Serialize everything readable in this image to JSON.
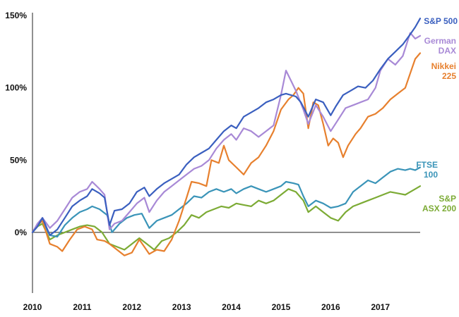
{
  "chart_data": {
    "type": "line",
    "title": "",
    "xlabel": "",
    "ylabel": "",
    "xlim": [
      2010,
      2017.8
    ],
    "ylim": [
      -42,
      152
    ],
    "x_ticks": [
      2010,
      2011,
      2012,
      2013,
      2014,
      2015,
      2016,
      2017
    ],
    "x_tick_labels": [
      "2010",
      "2011",
      "2012",
      "2013",
      "2014",
      "2015",
      "2016",
      "2017"
    ],
    "y_ticks": [
      0,
      50,
      100,
      150
    ],
    "y_tick_labels": [
      "0%",
      "50%",
      "100%",
      "150%"
    ],
    "grid": false,
    "legend": "inline labels at right end of each line",
    "series": [
      {
        "name": "S&P 500",
        "label_lines": [
          "S&P 500"
        ],
        "color": "#3a5fbf",
        "points": [
          [
            2010.0,
            0
          ],
          [
            2010.1,
            4
          ],
          [
            2010.2,
            10
          ],
          [
            2010.35,
            -2
          ],
          [
            2010.5,
            2
          ],
          [
            2010.65,
            10
          ],
          [
            2010.8,
            18
          ],
          [
            2010.95,
            22
          ],
          [
            2011.1,
            25
          ],
          [
            2011.2,
            30
          ],
          [
            2011.35,
            27
          ],
          [
            2011.45,
            24
          ],
          [
            2011.55,
            5
          ],
          [
            2011.65,
            15
          ],
          [
            2011.8,
            16
          ],
          [
            2011.95,
            20
          ],
          [
            2012.1,
            28
          ],
          [
            2012.25,
            31
          ],
          [
            2012.35,
            25
          ],
          [
            2012.5,
            30
          ],
          [
            2012.65,
            34
          ],
          [
            2012.8,
            37
          ],
          [
            2012.95,
            40
          ],
          [
            2013.1,
            47
          ],
          [
            2013.25,
            52
          ],
          [
            2013.4,
            55
          ],
          [
            2013.55,
            58
          ],
          [
            2013.7,
            64
          ],
          [
            2013.85,
            70
          ],
          [
            2014.0,
            74
          ],
          [
            2014.1,
            72
          ],
          [
            2014.25,
            80
          ],
          [
            2014.4,
            83
          ],
          [
            2014.55,
            86
          ],
          [
            2014.7,
            90
          ],
          [
            2014.85,
            92
          ],
          [
            2015.0,
            95
          ],
          [
            2015.1,
            96
          ],
          [
            2015.3,
            94
          ],
          [
            2015.4,
            90
          ],
          [
            2015.55,
            80
          ],
          [
            2015.7,
            92
          ],
          [
            2015.85,
            90
          ],
          [
            2016.0,
            81
          ],
          [
            2016.1,
            87
          ],
          [
            2016.25,
            95
          ],
          [
            2016.4,
            98
          ],
          [
            2016.55,
            101
          ],
          [
            2016.7,
            100
          ],
          [
            2016.85,
            105
          ],
          [
            2017.0,
            113
          ],
          [
            2017.15,
            120
          ],
          [
            2017.3,
            125
          ],
          [
            2017.45,
            130
          ],
          [
            2017.6,
            137
          ],
          [
            2017.7,
            142
          ],
          [
            2017.8,
            148
          ]
        ]
      },
      {
        "name": "German DAX",
        "label_lines": [
          "German",
          "DAX"
        ],
        "color": "#a889d6",
        "points": [
          [
            2010.0,
            0
          ],
          [
            2010.1,
            6
          ],
          [
            2010.2,
            10
          ],
          [
            2010.35,
            3
          ],
          [
            2010.5,
            8
          ],
          [
            2010.65,
            16
          ],
          [
            2010.8,
            24
          ],
          [
            2010.95,
            28
          ],
          [
            2011.1,
            30
          ],
          [
            2011.2,
            35
          ],
          [
            2011.35,
            30
          ],
          [
            2011.45,
            26
          ],
          [
            2011.55,
            2
          ],
          [
            2011.65,
            6
          ],
          [
            2011.8,
            8
          ],
          [
            2011.95,
            14
          ],
          [
            2012.1,
            20
          ],
          [
            2012.25,
            24
          ],
          [
            2012.35,
            14
          ],
          [
            2012.5,
            22
          ],
          [
            2012.65,
            28
          ],
          [
            2012.8,
            32
          ],
          [
            2012.95,
            36
          ],
          [
            2013.1,
            40
          ],
          [
            2013.25,
            44
          ],
          [
            2013.4,
            46
          ],
          [
            2013.55,
            50
          ],
          [
            2013.7,
            58
          ],
          [
            2013.85,
            64
          ],
          [
            2014.0,
            68
          ],
          [
            2014.1,
            64
          ],
          [
            2014.25,
            72
          ],
          [
            2014.4,
            70
          ],
          [
            2014.55,
            66
          ],
          [
            2014.7,
            70
          ],
          [
            2014.85,
            74
          ],
          [
            2015.0,
            95
          ],
          [
            2015.1,
            112
          ],
          [
            2015.2,
            105
          ],
          [
            2015.3,
            98
          ],
          [
            2015.45,
            85
          ],
          [
            2015.55,
            75
          ],
          [
            2015.7,
            88
          ],
          [
            2015.85,
            80
          ],
          [
            2016.0,
            70
          ],
          [
            2016.15,
            78
          ],
          [
            2016.3,
            86
          ],
          [
            2016.45,
            88
          ],
          [
            2016.6,
            90
          ],
          [
            2016.75,
            92
          ],
          [
            2016.9,
            100
          ],
          [
            2017.0,
            112
          ],
          [
            2017.15,
            120
          ],
          [
            2017.3,
            116
          ],
          [
            2017.45,
            122
          ],
          [
            2017.6,
            138
          ],
          [
            2017.7,
            134
          ],
          [
            2017.8,
            136
          ]
        ]
      },
      {
        "name": "Nikkei 225",
        "label_lines": [
          "Nikkei",
          "225"
        ],
        "color": "#e7802e",
        "points": [
          [
            2010.0,
            0
          ],
          [
            2010.1,
            5
          ],
          [
            2010.2,
            8
          ],
          [
            2010.35,
            -8
          ],
          [
            2010.5,
            -10
          ],
          [
            2010.6,
            -13
          ],
          [
            2010.75,
            -5
          ],
          [
            2010.9,
            2
          ],
          [
            2011.05,
            4
          ],
          [
            2011.2,
            2
          ],
          [
            2011.3,
            -5
          ],
          [
            2011.45,
            -6
          ],
          [
            2011.55,
            -8
          ],
          [
            2011.7,
            -12
          ],
          [
            2011.85,
            -16
          ],
          [
            2012.0,
            -14
          ],
          [
            2012.15,
            -5
          ],
          [
            2012.25,
            -10
          ],
          [
            2012.35,
            -15
          ],
          [
            2012.5,
            -12
          ],
          [
            2012.65,
            -13
          ],
          [
            2012.8,
            -5
          ],
          [
            2012.95,
            8
          ],
          [
            2013.1,
            24
          ],
          [
            2013.2,
            35
          ],
          [
            2013.35,
            34
          ],
          [
            2013.5,
            32
          ],
          [
            2013.6,
            50
          ],
          [
            2013.75,
            48
          ],
          [
            2013.85,
            60
          ],
          [
            2013.95,
            50
          ],
          [
            2014.1,
            45
          ],
          [
            2014.25,
            40
          ],
          [
            2014.4,
            48
          ],
          [
            2014.55,
            52
          ],
          [
            2014.7,
            60
          ],
          [
            2014.85,
            70
          ],
          [
            2015.0,
            85
          ],
          [
            2015.15,
            92
          ],
          [
            2015.25,
            95
          ],
          [
            2015.35,
            100
          ],
          [
            2015.45,
            96
          ],
          [
            2015.55,
            72
          ],
          [
            2015.65,
            90
          ],
          [
            2015.75,
            88
          ],
          [
            2015.85,
            75
          ],
          [
            2015.95,
            60
          ],
          [
            2016.05,
            65
          ],
          [
            2016.15,
            62
          ],
          [
            2016.25,
            52
          ],
          [
            2016.35,
            60
          ],
          [
            2016.5,
            68
          ],
          [
            2016.6,
            72
          ],
          [
            2016.75,
            80
          ],
          [
            2016.9,
            82
          ],
          [
            2017.05,
            86
          ],
          [
            2017.2,
            92
          ],
          [
            2017.35,
            96
          ],
          [
            2017.5,
            100
          ],
          [
            2017.6,
            110
          ],
          [
            2017.7,
            120
          ],
          [
            2017.8,
            124
          ]
        ]
      },
      {
        "name": "FTSE 100",
        "label_lines": [
          "FTSE",
          "100"
        ],
        "color": "#3a94b8",
        "points": [
          [
            2010.0,
            0
          ],
          [
            2010.1,
            5
          ],
          [
            2010.2,
            8
          ],
          [
            2010.35,
            -2
          ],
          [
            2010.5,
            -3
          ],
          [
            2010.65,
            5
          ],
          [
            2010.8,
            10
          ],
          [
            2010.95,
            14
          ],
          [
            2011.1,
            16
          ],
          [
            2011.2,
            18
          ],
          [
            2011.35,
            16
          ],
          [
            2011.5,
            12
          ],
          [
            2011.6,
            0
          ],
          [
            2011.75,
            6
          ],
          [
            2011.9,
            10
          ],
          [
            2012.05,
            12
          ],
          [
            2012.2,
            13
          ],
          [
            2012.35,
            3
          ],
          [
            2012.5,
            8
          ],
          [
            2012.65,
            10
          ],
          [
            2012.8,
            12
          ],
          [
            2012.95,
            16
          ],
          [
            2013.1,
            20
          ],
          [
            2013.25,
            25
          ],
          [
            2013.4,
            24
          ],
          [
            2013.55,
            28
          ],
          [
            2013.7,
            30
          ],
          [
            2013.85,
            28
          ],
          [
            2014.0,
            30
          ],
          [
            2014.1,
            27
          ],
          [
            2014.25,
            30
          ],
          [
            2014.4,
            32
          ],
          [
            2014.55,
            30
          ],
          [
            2014.7,
            28
          ],
          [
            2014.85,
            30
          ],
          [
            2015.0,
            32
          ],
          [
            2015.1,
            35
          ],
          [
            2015.25,
            34
          ],
          [
            2015.35,
            33
          ],
          [
            2015.45,
            25
          ],
          [
            2015.55,
            18
          ],
          [
            2015.7,
            22
          ],
          [
            2015.85,
            20
          ],
          [
            2016.0,
            17
          ],
          [
            2016.15,
            18
          ],
          [
            2016.3,
            20
          ],
          [
            2016.45,
            28
          ],
          [
            2016.6,
            32
          ],
          [
            2016.75,
            36
          ],
          [
            2016.9,
            34
          ],
          [
            2017.05,
            38
          ],
          [
            2017.2,
            42
          ],
          [
            2017.35,
            44
          ],
          [
            2017.5,
            43
          ],
          [
            2017.6,
            44
          ],
          [
            2017.7,
            43
          ],
          [
            2017.8,
            45
          ]
        ]
      },
      {
        "name": "S&P ASX 200",
        "label_lines": [
          "S&P",
          "ASX 200"
        ],
        "color": "#7cab35",
        "points": [
          [
            2010.0,
            0
          ],
          [
            2010.1,
            4
          ],
          [
            2010.2,
            6
          ],
          [
            2010.35,
            -5
          ],
          [
            2010.5,
            -2
          ],
          [
            2010.65,
            0
          ],
          [
            2010.8,
            2
          ],
          [
            2010.95,
            4
          ],
          [
            2011.1,
            5
          ],
          [
            2011.25,
            4
          ],
          [
            2011.4,
            0
          ],
          [
            2011.55,
            -8
          ],
          [
            2011.7,
            -10
          ],
          [
            2011.85,
            -12
          ],
          [
            2012.0,
            -8
          ],
          [
            2012.15,
            -4
          ],
          [
            2012.3,
            -8
          ],
          [
            2012.45,
            -12
          ],
          [
            2012.6,
            -6
          ],
          [
            2012.75,
            -4
          ],
          [
            2012.9,
            0
          ],
          [
            2013.05,
            5
          ],
          [
            2013.2,
            12
          ],
          [
            2013.35,
            10
          ],
          [
            2013.5,
            14
          ],
          [
            2013.65,
            16
          ],
          [
            2013.8,
            18
          ],
          [
            2013.95,
            17
          ],
          [
            2014.1,
            20
          ],
          [
            2014.25,
            19
          ],
          [
            2014.4,
            18
          ],
          [
            2014.55,
            22
          ],
          [
            2014.7,
            20
          ],
          [
            2014.85,
            22
          ],
          [
            2015.0,
            26
          ],
          [
            2015.15,
            30
          ],
          [
            2015.3,
            28
          ],
          [
            2015.45,
            22
          ],
          [
            2015.55,
            14
          ],
          [
            2015.7,
            18
          ],
          [
            2015.85,
            14
          ],
          [
            2016.0,
            10
          ],
          [
            2016.15,
            8
          ],
          [
            2016.3,
            14
          ],
          [
            2016.45,
            18
          ],
          [
            2016.6,
            20
          ],
          [
            2016.75,
            22
          ],
          [
            2016.9,
            24
          ],
          [
            2017.05,
            26
          ],
          [
            2017.2,
            28
          ],
          [
            2017.35,
            27
          ],
          [
            2017.5,
            26
          ],
          [
            2017.6,
            28
          ],
          [
            2017.7,
            30
          ],
          [
            2017.8,
            32
          ]
        ]
      }
    ]
  }
}
